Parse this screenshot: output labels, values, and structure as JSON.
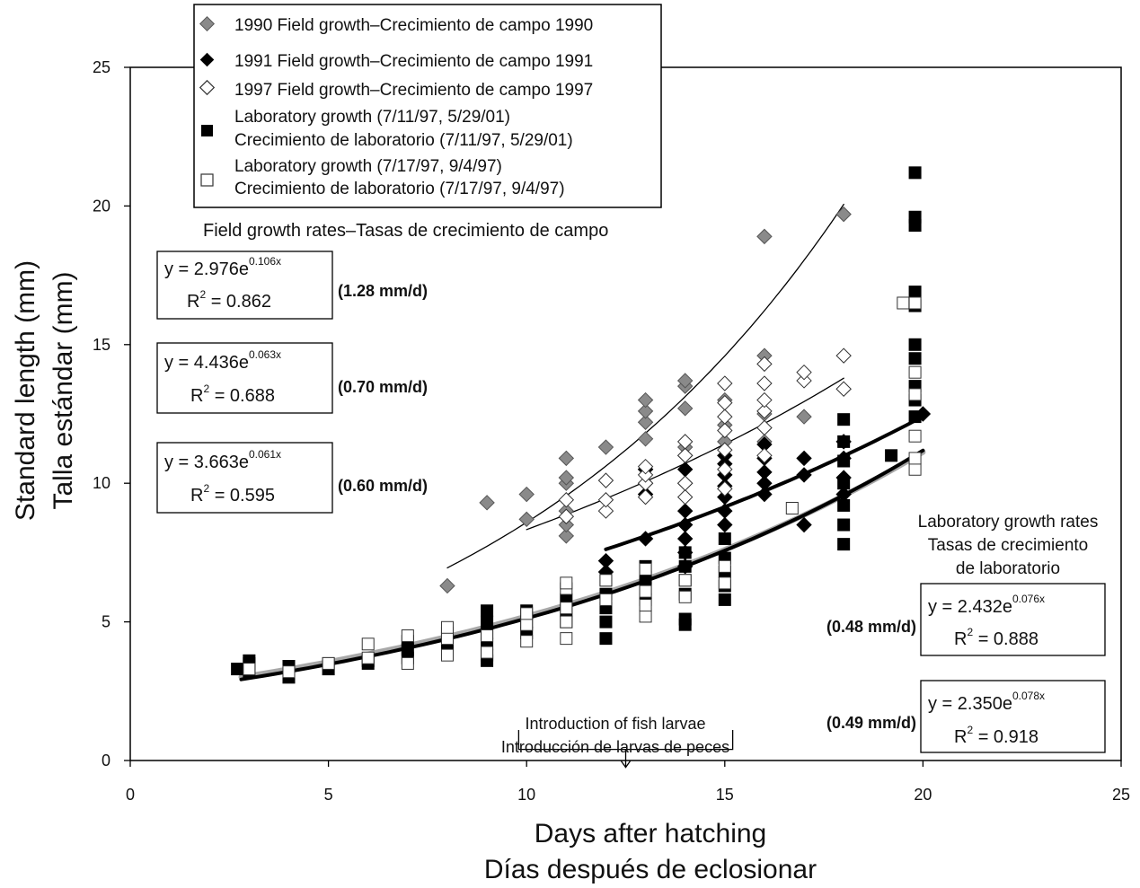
{
  "chart_data": {
    "type": "scatter",
    "xlabel_en": "Days after hatching",
    "xlabel_es": "Días después de eclosionar",
    "ylabel_en": "Standard length (mm)",
    "ylabel_es": "Talla estándar (mm)",
    "xlim": [
      0,
      25
    ],
    "ylim": [
      0,
      25
    ],
    "xticks": [
      "0",
      "5",
      "10",
      "15",
      "20",
      "25"
    ],
    "yticks": [
      "0",
      "5",
      "10",
      "15",
      "20",
      "25"
    ],
    "grid": false,
    "legend_position": "top-center",
    "legend": [
      {
        "line1": "1990 Field growth–Crecimiento de campo 1990",
        "line2": ""
      },
      {
        "line1": "1991 Field growth–Crecimiento de campo 1991",
        "line2": ""
      },
      {
        "line1": "1997 Field growth–Crecimiento de campo 1997",
        "line2": ""
      },
      {
        "line1": "Laboratory growth (7/11/97, 5/29/01)",
        "line2": "Crecimiento de laboratorio (7/11/97, 5/29/01)"
      },
      {
        "line1": "Laboratory growth (7/17/97, 9/4/97)",
        "line2": "Crecimiento de laboratorio (7/17/97, 9/4/97)"
      }
    ],
    "field_rates_title": "Field growth rates–Tasas de crecimiento de campo",
    "lab_rates_title": [
      "Laboratory growth rates",
      "Tasas de crecimiento",
      "de laboratorio"
    ],
    "equations": [
      {
        "group": "field",
        "y_prefix": "y = 2.976e",
        "exponent": "0.106x",
        "r2_prefix": "R",
        "r2_value": " = 0.862",
        "rate": "(1.28 mm/d)"
      },
      {
        "group": "field",
        "y_prefix": "y = 4.436e",
        "exponent": "0.063x",
        "r2_prefix": "R",
        "r2_value": " = 0.688",
        "rate": "(0.70 mm/d)"
      },
      {
        "group": "field",
        "y_prefix": "y = 3.663e",
        "exponent": "0.061x",
        "r2_prefix": "R",
        "r2_value": " = 0.595",
        "rate": "(0.60 mm/d)"
      },
      {
        "group": "lab",
        "y_prefix": "y = 2.432e",
        "exponent": "0.076x",
        "r2_prefix": "R",
        "r2_value": " = 0.888",
        "rate": "(0.48 mm/d)"
      },
      {
        "group": "lab",
        "y_prefix": "y = 2.350e",
        "exponent": "0.078x",
        "r2_prefix": "R",
        "r2_value": " = 0.918",
        "rate": "(0.49 mm/d)"
      }
    ],
    "annotation": {
      "lines": [
        "Introduction of fish larvae",
        "Introducción de larvas de peces"
      ],
      "x_range": [
        9.8,
        15.2
      ]
    },
    "fits": [
      {
        "a": 2.976,
        "b": 0.106,
        "x_range": [
          8,
          18
        ],
        "style": "thin"
      },
      {
        "a": 4.436,
        "b": 0.063,
        "x_range": [
          10,
          18
        ],
        "style": "thin"
      },
      {
        "a": 3.663,
        "b": 0.061,
        "x_range": [
          12,
          20
        ],
        "style": "thick"
      },
      {
        "a": 2.432,
        "b": 0.076,
        "x_range": [
          2.8,
          20
        ],
        "style": "thick-gray"
      },
      {
        "a": 2.35,
        "b": 0.078,
        "x_range": [
          2.8,
          20
        ],
        "style": "thick"
      }
    ],
    "series": [
      {
        "marker": "diamond",
        "color": "#8a8a8a",
        "points": [
          [
            8,
            6.3
          ],
          [
            9,
            9.3
          ],
          [
            10,
            8.7
          ],
          [
            10,
            9.6
          ],
          [
            11,
            8.1
          ],
          [
            11,
            8.5
          ],
          [
            11,
            9.0
          ],
          [
            11,
            10.0
          ],
          [
            11,
            10.2
          ],
          [
            11,
            10.9
          ],
          [
            12,
            11.3
          ],
          [
            13,
            10.5
          ],
          [
            13,
            11.6
          ],
          [
            13,
            12.2
          ],
          [
            13,
            12.6
          ],
          [
            13,
            13.0
          ],
          [
            14,
            11.3
          ],
          [
            14,
            12.7
          ],
          [
            14,
            13.5
          ],
          [
            14,
            13.7
          ],
          [
            15,
            11.5
          ],
          [
            15,
            12.1
          ],
          [
            15,
            13.0
          ],
          [
            16,
            11.5
          ],
          [
            16,
            12.0
          ],
          [
            16,
            12.5
          ],
          [
            16,
            14.6
          ],
          [
            16,
            18.9
          ],
          [
            17,
            12.4
          ],
          [
            18,
            13.4
          ],
          [
            18,
            19.7
          ]
        ]
      },
      {
        "marker": "diamond",
        "color": "#000000",
        "points": [
          [
            12,
            6.8
          ],
          [
            12,
            7.2
          ],
          [
            13,
            8.0
          ],
          [
            13,
            9.6
          ],
          [
            13,
            10.0
          ],
          [
            13,
            10.5
          ],
          [
            14,
            7.0
          ],
          [
            14,
            7.5
          ],
          [
            14,
            8.0
          ],
          [
            14,
            8.5
          ],
          [
            14,
            9.0
          ],
          [
            14,
            10.0
          ],
          [
            14,
            10.5
          ],
          [
            14,
            11.0
          ],
          [
            15,
            8.5
          ],
          [
            15,
            9.0
          ],
          [
            15,
            9.5
          ],
          [
            15,
            9.9
          ],
          [
            15,
            10.3
          ],
          [
            15,
            10.7
          ],
          [
            15,
            11.0
          ],
          [
            16,
            9.6
          ],
          [
            16,
            10.0
          ],
          [
            16,
            10.4
          ],
          [
            16,
            10.9
          ],
          [
            16,
            11.4
          ],
          [
            17,
            8.5
          ],
          [
            17,
            10.3
          ],
          [
            17,
            10.9
          ],
          [
            18,
            9.6
          ],
          [
            18,
            10.2
          ],
          [
            18,
            10.9
          ],
          [
            18,
            11.5
          ],
          [
            20,
            12.5
          ]
        ]
      },
      {
        "marker": "diamond",
        "color": "#ffffff",
        "points": [
          [
            11,
            8.8
          ],
          [
            11,
            9.4
          ],
          [
            12,
            9.0
          ],
          [
            12,
            9.4
          ],
          [
            12,
            10.1
          ],
          [
            13,
            9.5
          ],
          [
            13,
            10.0
          ],
          [
            13,
            10.3
          ],
          [
            13,
            10.6
          ],
          [
            14,
            9.5
          ],
          [
            14,
            10.0
          ],
          [
            14,
            11.0
          ],
          [
            14,
            11.5
          ],
          [
            15,
            9.8
          ],
          [
            15,
            10.5
          ],
          [
            15,
            11.2
          ],
          [
            15,
            11.9
          ],
          [
            15,
            12.4
          ],
          [
            15,
            12.9
          ],
          [
            15,
            13.6
          ],
          [
            16,
            11.0
          ],
          [
            16,
            12.0
          ],
          [
            16,
            12.6
          ],
          [
            16,
            13.0
          ],
          [
            16,
            13.6
          ],
          [
            16,
            14.3
          ],
          [
            17,
            13.7
          ],
          [
            17,
            14.0
          ],
          [
            18,
            13.4
          ],
          [
            18,
            14.6
          ]
        ]
      },
      {
        "marker": "square",
        "color": "#000000",
        "points": [
          [
            2.7,
            3.3
          ],
          [
            3,
            3.5
          ],
          [
            3,
            3.2
          ],
          [
            3,
            3.6
          ],
          [
            4,
            3.0
          ],
          [
            4,
            3.4
          ],
          [
            5,
            3.3
          ],
          [
            5,
            3.5
          ],
          [
            6,
            3.5
          ],
          [
            6,
            3.6
          ],
          [
            7,
            3.7
          ],
          [
            7,
            4.0
          ],
          [
            7,
            4.3
          ],
          [
            8,
            4.2
          ],
          [
            8,
            4.6
          ],
          [
            9,
            3.6
          ],
          [
            9,
            3.8
          ],
          [
            9,
            4.2
          ],
          [
            9,
            4.6
          ],
          [
            9,
            5.0
          ],
          [
            9,
            5.4
          ],
          [
            10,
            4.6
          ],
          [
            10,
            5.0
          ],
          [
            10,
            5.4
          ],
          [
            11,
            5.0
          ],
          [
            11,
            5.4
          ],
          [
            11,
            5.8
          ],
          [
            12,
            4.4
          ],
          [
            12,
            5.0
          ],
          [
            12,
            5.5
          ],
          [
            12,
            6.0
          ],
          [
            12,
            6.5
          ],
          [
            13,
            5.8
          ],
          [
            13,
            6.2
          ],
          [
            13,
            6.6
          ],
          [
            13,
            7.0
          ],
          [
            14,
            4.9
          ],
          [
            14,
            5.1
          ],
          [
            14,
            6.0
          ],
          [
            14,
            6.5
          ],
          [
            14,
            7.0
          ],
          [
            14,
            7.5
          ],
          [
            15,
            5.8
          ],
          [
            15,
            6.3
          ],
          [
            15,
            6.8
          ],
          [
            15,
            7.3
          ],
          [
            15,
            8.0
          ],
          [
            18,
            7.8
          ],
          [
            18,
            8.5
          ],
          [
            18,
            9.2
          ],
          [
            18,
            10.0
          ],
          [
            18,
            10.8
          ],
          [
            18,
            11.5
          ],
          [
            18,
            12.3
          ],
          [
            19.2,
            11.0
          ],
          [
            19.8,
            12.4
          ],
          [
            19.8,
            13.0
          ],
          [
            19.8,
            13.5
          ],
          [
            19.8,
            14.5
          ],
          [
            19.8,
            15.0
          ],
          [
            19.8,
            16.4
          ],
          [
            19.8,
            16.9
          ],
          [
            19.8,
            19.3
          ],
          [
            19.8,
            19.6
          ],
          [
            19.8,
            21.2
          ]
        ]
      },
      {
        "marker": "square",
        "color": "#ffffff",
        "points": [
          [
            3,
            3.3
          ],
          [
            4,
            3.2
          ],
          [
            5,
            3.5
          ],
          [
            6,
            3.7
          ],
          [
            6,
            4.2
          ],
          [
            7,
            3.5
          ],
          [
            7,
            4.5
          ],
          [
            8,
            3.8
          ],
          [
            8,
            4.4
          ],
          [
            8,
            4.8
          ],
          [
            9,
            3.9
          ],
          [
            9,
            4.5
          ],
          [
            10,
            4.3
          ],
          [
            10,
            4.9
          ],
          [
            10,
            5.3
          ],
          [
            11,
            4.4
          ],
          [
            11,
            5.0
          ],
          [
            11,
            5.5
          ],
          [
            11,
            6.2
          ],
          [
            11,
            6.4
          ],
          [
            12,
            5.8
          ],
          [
            12,
            6.5
          ],
          [
            13,
            5.2
          ],
          [
            13,
            5.6
          ],
          [
            13,
            6.1
          ],
          [
            13,
            6.9
          ],
          [
            14,
            5.9
          ],
          [
            14,
            6.5
          ],
          [
            15,
            6.4
          ],
          [
            15,
            7.0
          ],
          [
            16.7,
            9.1
          ],
          [
            19.5,
            16.5
          ],
          [
            19.8,
            16.5
          ],
          [
            19.8,
            10.5
          ],
          [
            19.8,
            10.9
          ],
          [
            19.8,
            11.7
          ],
          [
            19.8,
            13.2
          ],
          [
            19.8,
            14.0
          ]
        ]
      }
    ]
  }
}
